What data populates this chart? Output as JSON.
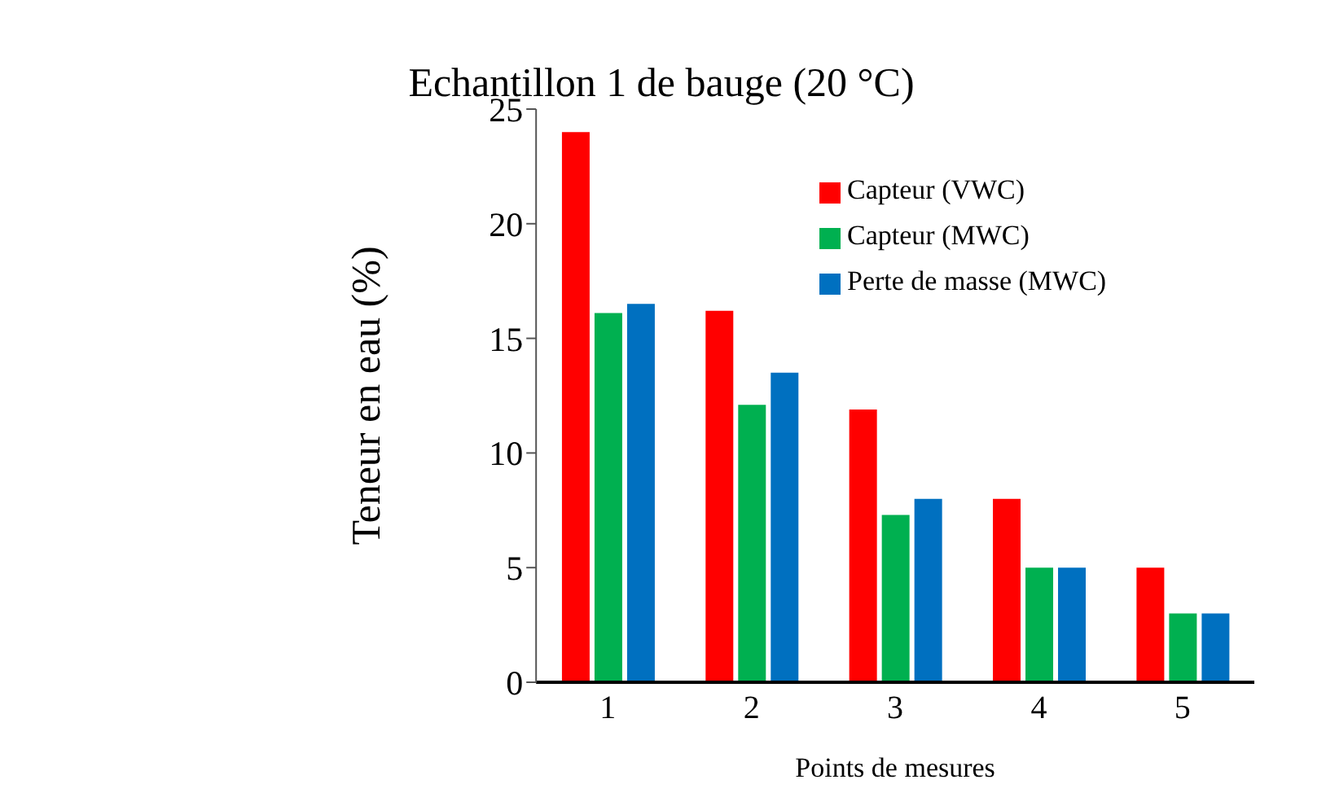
{
  "chart_data": {
    "type": "bar",
    "title": "Echantillon 1 de bauge (20 °C)",
    "xlabel": "Points de mesures",
    "ylabel": "Teneur en eau (%)",
    "categories": [
      "1",
      "2",
      "3",
      "4",
      "5"
    ],
    "series": [
      {
        "name": "Capteur (VWC)",
        "color": "#ff0000",
        "values": [
          24.0,
          16.2,
          11.9,
          8.0,
          5.0
        ]
      },
      {
        "name": "Capteur (MWC)",
        "color": "#00b050",
        "values": [
          16.1,
          12.1,
          7.3,
          5.0,
          3.0
        ]
      },
      {
        "name": "Perte de masse (MWC)",
        "color": "#0070c0",
        "values": [
          16.5,
          13.5,
          8.0,
          5.0,
          3.0
        ]
      }
    ],
    "ylim": [
      0,
      25
    ],
    "yticks": [
      0,
      5,
      10,
      15,
      20,
      25
    ],
    "grid": false,
    "legend": "top right"
  }
}
